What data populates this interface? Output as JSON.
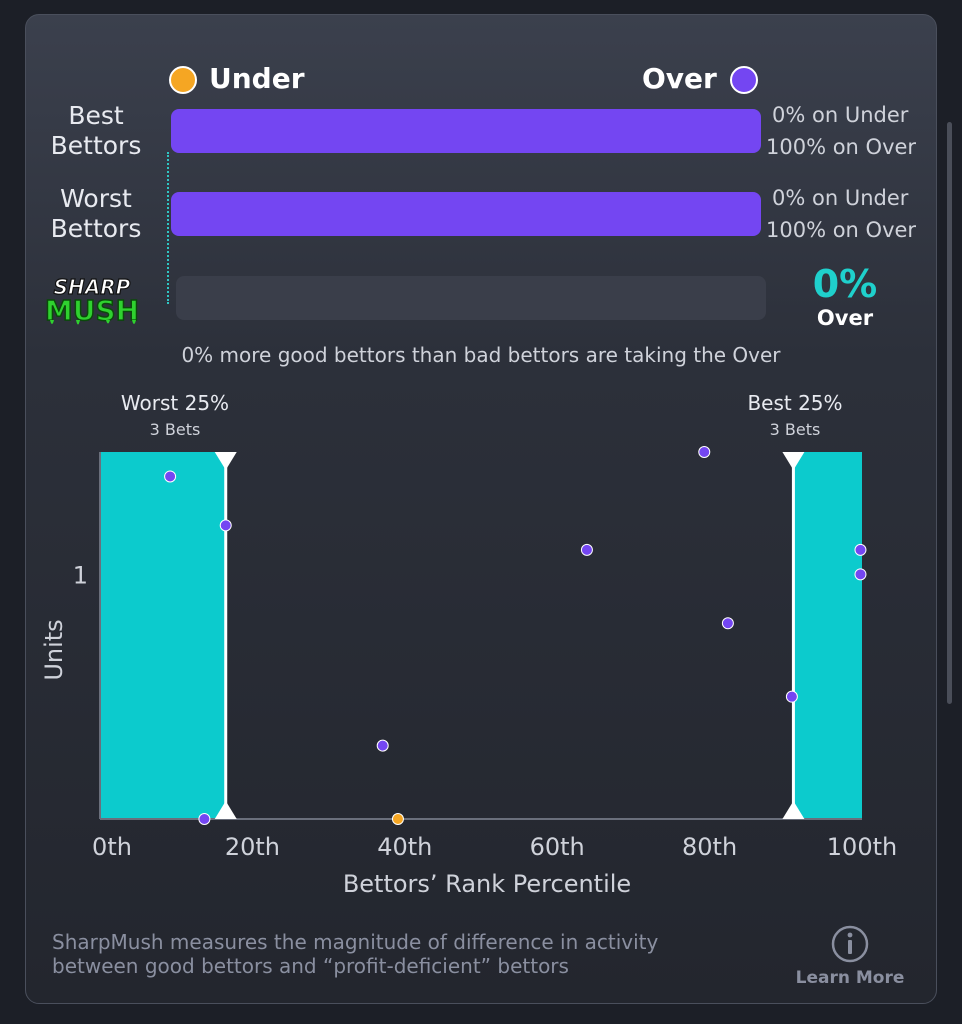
{
  "legend": {
    "under_label": "Under",
    "over_label": "Over",
    "under_color": "#f5a623",
    "over_color": "#7446f2"
  },
  "rows": [
    {
      "label_line1": "Best",
      "label_line2": "Bettors",
      "under_text": "0% on Under",
      "over_text": "100% on Over",
      "over_pct": 100
    },
    {
      "label_line1": "Worst",
      "label_line2": "Bettors",
      "under_text": "0% on Under",
      "over_text": "100% on Over",
      "over_pct": 100
    }
  ],
  "logo": {
    "line1": "SHARP",
    "line2": "MUSH"
  },
  "net": {
    "value": "0%",
    "side": "Over"
  },
  "summary": "0% more good bettors than bad bettors are taking the Over",
  "zones": {
    "worst": {
      "title": "Worst 25%",
      "sub": "3 Bets"
    },
    "best": {
      "title": "Best 25%",
      "sub": "3 Bets"
    }
  },
  "chart_data": {
    "type": "scatter",
    "xlabel": "Bettors’ Rank Percentile",
    "ylabel": "Units",
    "xlim": [
      0,
      100
    ],
    "ylim": [
      0,
      1.5
    ],
    "x_ticks": [
      "0th",
      "20th",
      "40th",
      "60th",
      "80th",
      "100th"
    ],
    "x_tick_values": [
      0,
      20,
      40,
      60,
      80,
      100
    ],
    "y_ticks": [
      "1"
    ],
    "y_tick_values": [
      1
    ],
    "highlight_bands": [
      [
        0,
        16.5
      ],
      [
        91,
        100
      ]
    ],
    "highlight_color": "#0ccbcd",
    "series": [
      {
        "name": "Over",
        "color": "#7446f2",
        "points": [
          [
            9.2,
            1.4
          ],
          [
            16.5,
            1.2
          ],
          [
            13.7,
            0
          ],
          [
            37.1,
            0.3
          ],
          [
            63.9,
            1.1
          ],
          [
            79.3,
            1.5
          ],
          [
            82.4,
            0.8
          ],
          [
            90.8,
            0.5
          ],
          [
            99.8,
            1.1
          ],
          [
            99.8,
            1.0
          ]
        ]
      },
      {
        "name": "Under",
        "color": "#f5a623",
        "points": [
          [
            39.1,
            0
          ]
        ]
      }
    ]
  },
  "footer": {
    "text_line1": "SharpMush measures the magnitude of difference in activity",
    "text_line2": "between good bettors and “profit-deficient” bettors",
    "learn_more": "Learn More",
    "info_icon": "info-icon"
  }
}
